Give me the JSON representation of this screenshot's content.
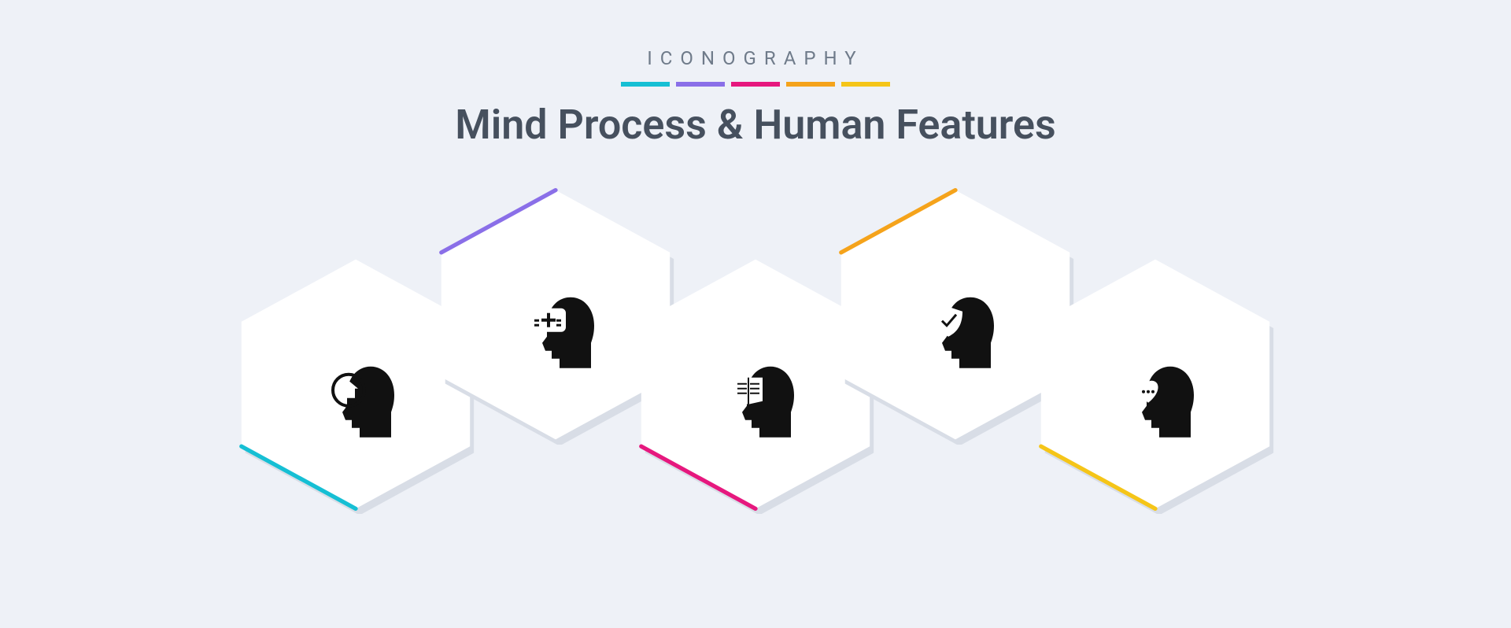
{
  "header": {
    "brand": "ICONOGRAPHY",
    "title": "Mind Process & Human Features"
  },
  "palette": {
    "stripes": [
      "#16bfd4",
      "#8a6fe8",
      "#e6187e",
      "#f5a31b",
      "#f5c518"
    ],
    "hex_fill": "#ffffff",
    "hex_shadow": "#d8dde6",
    "glyph": "#111111",
    "background": "#eef1f7"
  },
  "hexes": [
    {
      "accent": "#16bfd4",
      "edge": "bl",
      "offset": "down",
      "glyph": "home"
    },
    {
      "accent": "#8a6fe8",
      "edge": "tl",
      "offset": "up",
      "glyph": "plus"
    },
    {
      "accent": "#e6187e",
      "edge": "bl",
      "offset": "down",
      "glyph": "book"
    },
    {
      "accent": "#f5a31b",
      "edge": "tl",
      "offset": "up",
      "glyph": "shield"
    },
    {
      "accent": "#f5c518",
      "edge": "bl",
      "offset": "down",
      "glyph": "heart"
    }
  ]
}
